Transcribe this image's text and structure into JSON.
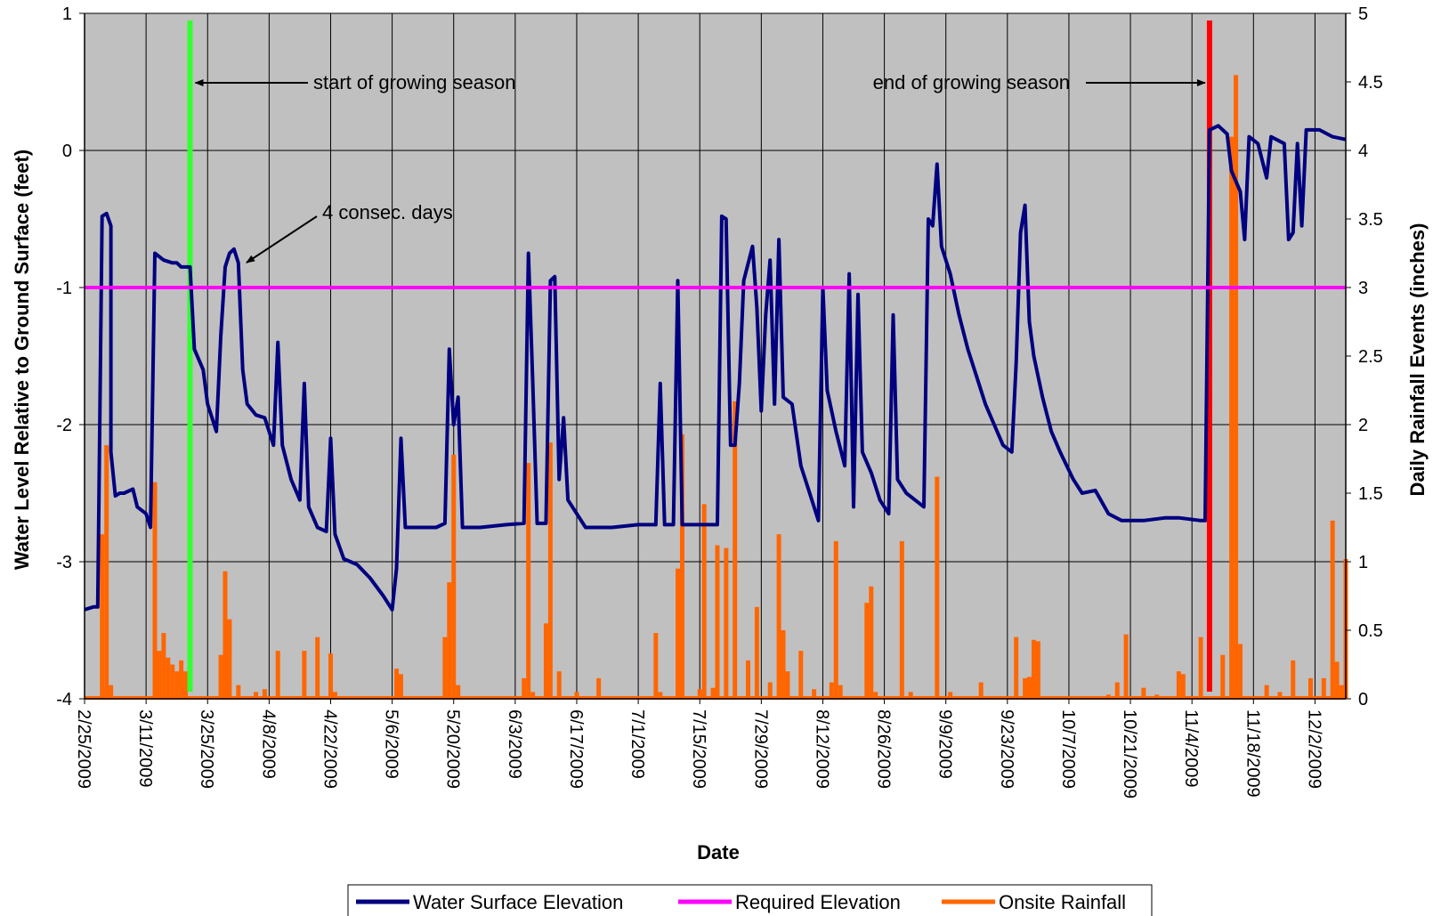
{
  "chart_data": {
    "type": "line",
    "title": "",
    "xlabel": "Date",
    "ylabel_left": "Water Level Relative to Ground Surface (feet)",
    "ylabel_right": "Daily Rainfall Events (inches)",
    "x_start": "2/25/2009",
    "x_end": "12/9/2009",
    "x_tick_labels": [
      "2/25/2009",
      "3/11/2009",
      "3/25/2009",
      "4/8/2009",
      "4/22/2009",
      "5/6/2009",
      "5/20/2009",
      "6/3/2009",
      "6/17/2009",
      "7/1/2009",
      "7/15/2009",
      "7/29/2009",
      "8/12/2009",
      "8/26/2009",
      "9/9/2009",
      "9/23/2009",
      "10/7/2009",
      "10/21/2009",
      "11/4/2009",
      "11/18/2009",
      "12/2/2009"
    ],
    "ylim_left": [
      -4,
      1
    ],
    "y_ticks_left": [
      "-4",
      "-3",
      "-2",
      "-1",
      "0",
      "1"
    ],
    "ylim_right": [
      0,
      5
    ],
    "y_ticks_right": [
      "0",
      "0.5",
      "1",
      "1.5",
      "2",
      "2.5",
      "3",
      "3.5",
      "4",
      "4.5",
      "5"
    ],
    "grid": true,
    "legend_position": "bottom",
    "legend": [
      "Water Surface Elevation",
      "Required Elevation",
      "Onsite Rainfall"
    ],
    "colors": {
      "plot_background": "#c0c0c0",
      "water_surface": "#000080",
      "required": "#ff00ff",
      "rainfall": "#ff6600",
      "growing_start": "#33ff33",
      "growing_end": "#ff0000"
    },
    "series": [
      {
        "name": "Water Surface Elevation",
        "axis": "left",
        "points": [
          [
            "2/25/2009",
            -3.35
          ],
          [
            "2/27/2009",
            -3.33
          ],
          [
            "2/28/2009",
            -3.33
          ],
          [
            "3/1/2009",
            -0.48
          ],
          [
            "3/2/2009",
            -0.46
          ],
          [
            "3/3/2009",
            -0.55
          ],
          [
            "3/3/2009",
            -2.2
          ],
          [
            "3/4/2009",
            -2.52
          ],
          [
            "3/5/2009",
            -2.5
          ],
          [
            "3/6/2009",
            -2.5
          ],
          [
            "3/8/2009",
            -2.47
          ],
          [
            "3/9/2009",
            -2.6
          ],
          [
            "3/11/2009",
            -2.65
          ],
          [
            "3/12/2009",
            -2.75
          ],
          [
            "3/13/2009",
            -0.75
          ],
          [
            "3/15/2009",
            -0.8
          ],
          [
            "3/17/2009",
            -0.82
          ],
          [
            "3/18/2009",
            -0.82
          ],
          [
            "3/19/2009",
            -0.85
          ],
          [
            "3/21/2009",
            -0.85
          ],
          [
            "3/22/2009",
            -1.45
          ],
          [
            "3/24/2009",
            -1.6
          ],
          [
            "3/25/2009",
            -1.85
          ],
          [
            "3/26/2009",
            -1.95
          ],
          [
            "3/27/2009",
            -2.05
          ],
          [
            "3/28/2009",
            -1.35
          ],
          [
            "3/29/2009",
            -0.85
          ],
          [
            "3/30/2009",
            -0.75
          ],
          [
            "3/31/2009",
            -0.72
          ],
          [
            "4/1/2009",
            -0.82
          ],
          [
            "4/2/2009",
            -1.6
          ],
          [
            "4/3/2009",
            -1.85
          ],
          [
            "4/5/2009",
            -1.93
          ],
          [
            "4/7/2009",
            -1.95
          ],
          [
            "4/8/2009",
            -2.05
          ],
          [
            "4/9/2009",
            -2.15
          ],
          [
            "4/10/2009",
            -1.4
          ],
          [
            "4/11/2009",
            -2.15
          ],
          [
            "4/13/2009",
            -2.4
          ],
          [
            "4/15/2009",
            -2.55
          ],
          [
            "4/16/2009",
            -1.7
          ],
          [
            "4/17/2009",
            -2.6
          ],
          [
            "4/19/2009",
            -2.75
          ],
          [
            "4/21/2009",
            -2.78
          ],
          [
            "4/22/2009",
            -2.1
          ],
          [
            "4/23/2009",
            -2.8
          ],
          [
            "4/25/2009",
            -2.98
          ],
          [
            "4/28/2009",
            -3.02
          ],
          [
            "5/1/2009",
            -3.12
          ],
          [
            "5/4/2009",
            -3.25
          ],
          [
            "5/6/2009",
            -3.35
          ],
          [
            "5/7/2009",
            -3.05
          ],
          [
            "5/8/2009",
            -2.1
          ],
          [
            "5/9/2009",
            -2.75
          ],
          [
            "5/12/2009",
            -2.75
          ],
          [
            "5/16/2009",
            -2.75
          ],
          [
            "5/18/2009",
            -2.72
          ],
          [
            "5/19/2009",
            -1.45
          ],
          [
            "5/20/2009",
            -2.0
          ],
          [
            "5/21/2009",
            -1.8
          ],
          [
            "5/22/2009",
            -2.75
          ],
          [
            "5/26/2009",
            -2.75
          ],
          [
            "6/1/2009",
            -2.73
          ],
          [
            "6/5/2009",
            -2.72
          ],
          [
            "6/6/2009",
            -0.75
          ],
          [
            "6/7/2009",
            -1.7
          ],
          [
            "6/8/2009",
            -2.72
          ],
          [
            "6/10/2009",
            -2.72
          ],
          [
            "6/11/2009",
            -0.95
          ],
          [
            "6/12/2009",
            -0.92
          ],
          [
            "6/13/2009",
            -2.4
          ],
          [
            "6/14/2009",
            -1.95
          ],
          [
            "6/15/2009",
            -2.55
          ],
          [
            "6/17/2009",
            -2.65
          ],
          [
            "6/19/2009",
            -2.75
          ],
          [
            "6/25/2009",
            -2.75
          ],
          [
            "7/1/2009",
            -2.73
          ],
          [
            "7/5/2009",
            -2.73
          ],
          [
            "7/6/2009",
            -1.7
          ],
          [
            "7/7/2009",
            -2.73
          ],
          [
            "7/9/2009",
            -2.73
          ],
          [
            "7/10/2009",
            -0.95
          ],
          [
            "7/11/2009",
            -2.73
          ],
          [
            "7/15/2009",
            -2.73
          ],
          [
            "7/19/2009",
            -2.73
          ],
          [
            "7/20/2009",
            -0.48
          ],
          [
            "7/21/2009",
            -0.5
          ],
          [
            "7/22/2009",
            -2.15
          ],
          [
            "7/23/2009",
            -2.15
          ],
          [
            "7/24/2009",
            -1.7
          ],
          [
            "7/25/2009",
            -0.95
          ],
          [
            "7/27/2009",
            -0.7
          ],
          [
            "7/28/2009",
            -1.15
          ],
          [
            "7/29/2009",
            -1.9
          ],
          [
            "7/30/2009",
            -1.2
          ],
          [
            "7/31/2009",
            -0.8
          ],
          [
            "8/1/2009",
            -1.85
          ],
          [
            "8/2/2009",
            -0.65
          ],
          [
            "8/3/2009",
            -1.8
          ],
          [
            "8/5/2009",
            -1.85
          ],
          [
            "8/7/2009",
            -2.3
          ],
          [
            "8/9/2009",
            -2.5
          ],
          [
            "8/11/2009",
            -2.7
          ],
          [
            "8/12/2009",
            -1.0
          ],
          [
            "8/13/2009",
            -1.75
          ],
          [
            "8/15/2009",
            -2.05
          ],
          [
            "8/17/2009",
            -2.3
          ],
          [
            "8/18/2009",
            -0.9
          ],
          [
            "8/19/2009",
            -2.6
          ],
          [
            "8/20/2009",
            -1.05
          ],
          [
            "8/21/2009",
            -2.2
          ],
          [
            "8/23/2009",
            -2.35
          ],
          [
            "8/25/2009",
            -2.55
          ],
          [
            "8/27/2009",
            -2.65
          ],
          [
            "8/28/2009",
            -1.2
          ],
          [
            "8/29/2009",
            -2.4
          ],
          [
            "8/31/2009",
            -2.5
          ],
          [
            "9/2/2009",
            -2.55
          ],
          [
            "9/4/2009",
            -2.6
          ],
          [
            "9/5/2009",
            -0.5
          ],
          [
            "9/6/2009",
            -0.55
          ],
          [
            "9/7/2009",
            -0.1
          ],
          [
            "9/8/2009",
            -0.7
          ],
          [
            "9/10/2009",
            -0.9
          ],
          [
            "9/12/2009",
            -1.2
          ],
          [
            "9/14/2009",
            -1.45
          ],
          [
            "9/16/2009",
            -1.65
          ],
          [
            "9/18/2009",
            -1.85
          ],
          [
            "9/20/2009",
            -2.0
          ],
          [
            "9/22/2009",
            -2.15
          ],
          [
            "9/24/2009",
            -2.2
          ],
          [
            "9/25/2009",
            -1.55
          ],
          [
            "9/26/2009",
            -0.6
          ],
          [
            "9/27/2009",
            -0.4
          ],
          [
            "9/28/2009",
            -1.25
          ],
          [
            "9/29/2009",
            -1.5
          ],
          [
            "10/1/2009",
            -1.8
          ],
          [
            "10/3/2009",
            -2.05
          ],
          [
            "10/5/2009",
            -2.2
          ],
          [
            "10/8/2009",
            -2.4
          ],
          [
            "10/10/2009",
            -2.5
          ],
          [
            "10/13/2009",
            -2.48
          ],
          [
            "10/16/2009",
            -2.65
          ],
          [
            "10/19/2009",
            -2.7
          ],
          [
            "10/24/2009",
            -2.7
          ],
          [
            "10/29/2009",
            -2.68
          ],
          [
            "11/1/2009",
            -2.68
          ],
          [
            "11/6/2009",
            -2.7
          ],
          [
            "11/7/2009",
            -2.7
          ],
          [
            "11/8/2009",
            0.15
          ],
          [
            "11/10/2009",
            0.18
          ],
          [
            "11/12/2009",
            0.12
          ],
          [
            "11/13/2009",
            -0.15
          ],
          [
            "11/15/2009",
            -0.3
          ],
          [
            "11/16/2009",
            -0.65
          ],
          [
            "11/17/2009",
            0.1
          ],
          [
            "11/19/2009",
            0.05
          ],
          [
            "11/21/2009",
            -0.2
          ],
          [
            "11/22/2009",
            0.1
          ],
          [
            "11/25/2009",
            0.05
          ],
          [
            "11/26/2009",
            -0.65
          ],
          [
            "11/27/2009",
            -0.6
          ],
          [
            "11/28/2009",
            0.05
          ],
          [
            "11/29/2009",
            -0.55
          ],
          [
            "11/30/2009",
            0.15
          ],
          [
            "12/3/2009",
            0.15
          ],
          [
            "12/6/2009",
            0.1
          ],
          [
            "12/9/2009",
            0.08
          ]
        ]
      },
      {
        "name": "Required Elevation",
        "axis": "left",
        "points": [
          [
            "2/25/2009",
            -1
          ],
          [
            "12/9/2009",
            -1
          ]
        ]
      },
      {
        "name": "Onsite Rainfall",
        "axis": "right",
        "type": "bar",
        "points": [
          [
            "3/1/2009",
            1.2
          ],
          [
            "3/2/2009",
            1.85
          ],
          [
            "3/3/2009",
            0.1
          ],
          [
            "3/13/2009",
            1.58
          ],
          [
            "3/14/2009",
            0.35
          ],
          [
            "3/15/2009",
            0.48
          ],
          [
            "3/16/2009",
            0.3
          ],
          [
            "3/17/2009",
            0.25
          ],
          [
            "3/18/2009",
            0.2
          ],
          [
            "3/19/2009",
            0.28
          ],
          [
            "3/20/2009",
            0.2
          ],
          [
            "3/28/2009",
            0.32
          ],
          [
            "3/29/2009",
            0.93
          ],
          [
            "3/30/2009",
            0.58
          ],
          [
            "4/1/2009",
            0.1
          ],
          [
            "4/5/2009",
            0.05
          ],
          [
            "4/7/2009",
            0.07
          ],
          [
            "4/10/2009",
            0.35
          ],
          [
            "4/16/2009",
            0.35
          ],
          [
            "4/19/2009",
            0.45
          ],
          [
            "4/22/2009",
            0.33
          ],
          [
            "4/23/2009",
            0.05
          ],
          [
            "5/7/2009",
            0.22
          ],
          [
            "5/8/2009",
            0.18
          ],
          [
            "5/18/2009",
            0.45
          ],
          [
            "5/19/2009",
            0.85
          ],
          [
            "5/20/2009",
            1.78
          ],
          [
            "5/21/2009",
            0.1
          ],
          [
            "6/5/2009",
            0.15
          ],
          [
            "6/6/2009",
            1.72
          ],
          [
            "6/7/2009",
            0.05
          ],
          [
            "6/10/2009",
            0.55
          ],
          [
            "6/11/2009",
            1.87
          ],
          [
            "6/13/2009",
            0.2
          ],
          [
            "6/17/2009",
            0.05
          ],
          [
            "6/22/2009",
            0.15
          ],
          [
            "7/5/2009",
            0.48
          ],
          [
            "7/6/2009",
            0.05
          ],
          [
            "7/10/2009",
            0.95
          ],
          [
            "7/11/2009",
            1.93
          ],
          [
            "7/15/2009",
            0.07
          ],
          [
            "7/16/2009",
            1.42
          ],
          [
            "7/18/2009",
            0.08
          ],
          [
            "7/19/2009",
            1.12
          ],
          [
            "7/21/2009",
            1.1
          ],
          [
            "7/23/2009",
            2.17
          ],
          [
            "7/26/2009",
            0.28
          ],
          [
            "7/28/2009",
            0.67
          ],
          [
            "7/31/2009",
            0.12
          ],
          [
            "8/2/2009",
            1.2
          ],
          [
            "8/3/2009",
            0.5
          ],
          [
            "8/4/2009",
            0.2
          ],
          [
            "8/7/2009",
            0.35
          ],
          [
            "8/10/2009",
            0.07
          ],
          [
            "8/14/2009",
            0.12
          ],
          [
            "8/15/2009",
            1.15
          ],
          [
            "8/16/2009",
            0.1
          ],
          [
            "8/22/2009",
            0.7
          ],
          [
            "8/23/2009",
            0.82
          ],
          [
            "8/24/2009",
            0.05
          ],
          [
            "8/30/2009",
            1.15
          ],
          [
            "9/1/2009",
            0.05
          ],
          [
            "9/7/2009",
            1.62
          ],
          [
            "9/10/2009",
            0.05
          ],
          [
            "9/17/2009",
            0.12
          ],
          [
            "9/25/2009",
            0.45
          ],
          [
            "9/27/2009",
            0.15
          ],
          [
            "9/28/2009",
            0.16
          ],
          [
            "9/29/2009",
            0.43
          ],
          [
            "9/30/2009",
            0.42
          ],
          [
            "10/12/2009",
            0.02
          ],
          [
            "10/16/2009",
            0.03
          ],
          [
            "10/18/2009",
            0.12
          ],
          [
            "10/20/2009",
            0.47
          ],
          [
            "10/24/2009",
            0.08
          ],
          [
            "10/27/2009",
            0.03
          ],
          [
            "11/1/2009",
            0.2
          ],
          [
            "11/2/2009",
            0.18
          ],
          [
            "11/6/2009",
            0.45
          ],
          [
            "11/11/2009",
            0.32
          ],
          [
            "11/13/2009",
            4.1
          ],
          [
            "11/14/2009",
            4.55
          ],
          [
            "11/15/2009",
            0.4
          ],
          [
            "11/21/2009",
            0.1
          ],
          [
            "11/24/2009",
            0.05
          ],
          [
            "11/27/2009",
            0.28
          ],
          [
            "12/1/2009",
            0.15
          ],
          [
            "12/4/2009",
            0.15
          ],
          [
            "12/6/2009",
            1.3
          ],
          [
            "12/7/2009",
            0.27
          ],
          [
            "12/8/2009",
            0.1
          ],
          [
            "12/9/2009",
            1.02
          ]
        ]
      }
    ],
    "markers": [
      {
        "name": "start of growing season",
        "date": "3/21/2009"
      },
      {
        "name": "end of growing season",
        "date": "11/8/2009"
      }
    ],
    "annotations": [
      {
        "text": "start of growing season"
      },
      {
        "text": "end of growing season"
      },
      {
        "text": "4 consec. days"
      }
    ]
  }
}
